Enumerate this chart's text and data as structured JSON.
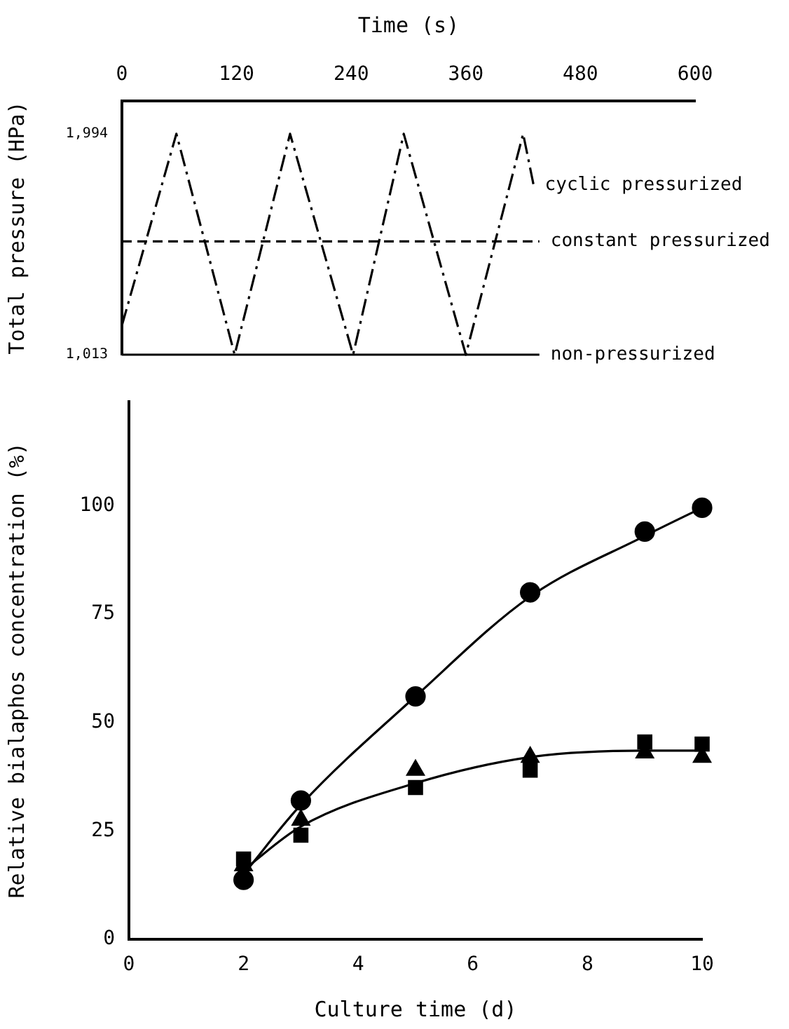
{
  "chart_data": [
    {
      "type": "line",
      "xlabel": "Time (s)",
      "ylabel": "Total pressure (HPa)",
      "xlim": [
        0,
        600
      ],
      "xticks": [
        0,
        120,
        240,
        360,
        480,
        600
      ],
      "ylim": [
        1013,
        2140
      ],
      "yticks": [
        {
          "value": 1013,
          "label": "1,013"
        },
        {
          "value": 1994,
          "label": "1,994"
        }
      ],
      "grid": false,
      "legend": false,
      "marker": "none",
      "series": [
        {
          "name": "cyclic pressurized",
          "color": "#000000",
          "line_style": "dashdot",
          "x": [
            0,
            57,
            118,
            176,
            242,
            295,
            360,
            420,
            431
          ],
          "values": [
            1143,
            1994,
            1013,
            1994,
            1013,
            1994,
            1013,
            1994,
            1765
          ]
        },
        {
          "name": "constant pressurized",
          "color": "#000000",
          "line_style": "dashed",
          "x": [
            0,
            437
          ],
          "values": [
            1516,
            1516
          ]
        },
        {
          "name": "non-pressurized",
          "color": "#000000",
          "line_style": "solid",
          "x": [
            0,
            437
          ],
          "values": [
            1013,
            1013
          ]
        }
      ]
    },
    {
      "type": "scatter",
      "xlabel": "Culture time (d)",
      "ylabel": "Relative bialaphos concentration (%)",
      "xlim": [
        0,
        10
      ],
      "xticks": [
        0,
        2,
        4,
        6,
        8,
        10
      ],
      "ylim": [
        0,
        124
      ],
      "yticks": [
        0,
        25,
        50,
        75,
        100
      ],
      "grid": false,
      "legend": false,
      "series": [
        {
          "type": "line",
          "color": "#000000",
          "marker": "none",
          "line_style": "solid",
          "x": [
            2,
            3,
            5,
            7,
            9,
            10
          ],
          "values": [
            15,
            31,
            56,
            79,
            93,
            99.5
          ]
        },
        {
          "type": "line",
          "color": "#000000",
          "marker": "none",
          "line_style": "solid",
          "x": [
            2,
            3,
            5,
            7,
            9,
            10
          ],
          "values": [
            16,
            26,
            36,
            42,
            43.5,
            43.5
          ]
        },
        {
          "type": "scatter",
          "color": "#000000",
          "marker": "circle",
          "x": [
            2,
            3,
            5,
            7,
            9,
            10
          ],
          "values": [
            13.7,
            32,
            56,
            80,
            94,
            99.5
          ]
        },
        {
          "type": "scatter",
          "color": "#000000",
          "marker": "triangle",
          "x": [
            2,
            3,
            5,
            7,
            9,
            10
          ],
          "values": [
            17,
            27.5,
            39,
            42,
            43,
            42
          ]
        },
        {
          "type": "scatter",
          "color": "#000000",
          "marker": "square",
          "x": [
            2,
            3,
            5,
            7,
            9,
            10
          ],
          "values": [
            18.5,
            24,
            35,
            39,
            45.5,
            45
          ]
        }
      ]
    }
  ]
}
